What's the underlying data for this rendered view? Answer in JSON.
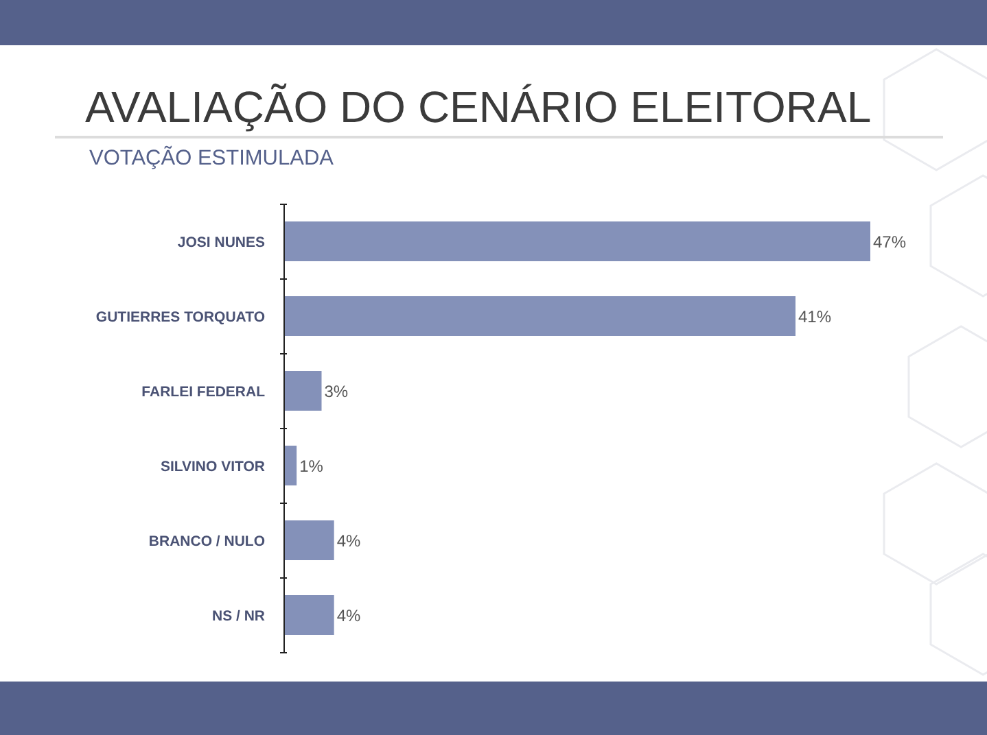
{
  "chart_data": {
    "type": "bar",
    "orientation": "horizontal",
    "title": "AVALIAÇÃO DO CENÁRIO ELEITORAL",
    "subtitle": "VOTAÇÃO ESTIMULADA",
    "categories": [
      "JOSI NUNES",
      "GUTIERRES TORQUATO",
      "FARLEI FEDERAL",
      "SILVINO VITOR",
      "BRANCO / NULO",
      "NS / NR"
    ],
    "values": [
      47,
      41,
      3,
      1,
      4,
      4
    ],
    "value_labels": [
      "47%",
      "41%",
      "3%",
      "1%",
      "4%",
      "4%"
    ],
    "color": "#8491b9",
    "tick_labels": "y"
  }
}
